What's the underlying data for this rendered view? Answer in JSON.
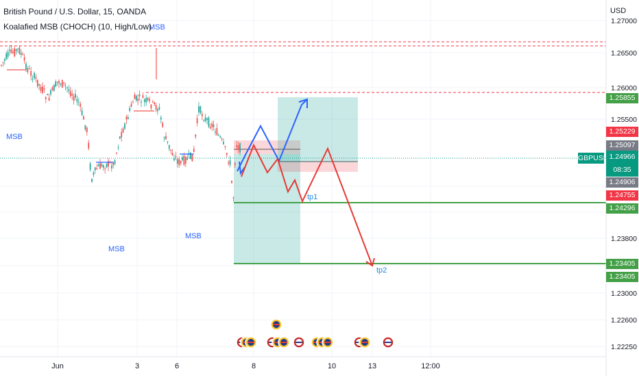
{
  "header": {
    "symbol": "British Pound / U.S. Dollar, 15, OANDA",
    "indicator": "Koalafied MSB (CHOCH)  (10, High/Low)"
  },
  "currency_label": "USD",
  "pair_badge": "GBPUSD",
  "current_price": {
    "price": "1.24966",
    "countdown": "08:35",
    "color": "#089981"
  },
  "price_axis": {
    "ticks": [
      "1.27000",
      "1.26500",
      "1.26000",
      "1.25500",
      "1.23800",
      "1.23000",
      "1.22600",
      "1.22250"
    ]
  },
  "price_tags": [
    {
      "label": "1.25855",
      "color": "#43a047"
    },
    {
      "label": "1.25229",
      "color": "#f23645"
    },
    {
      "label": "1.25097",
      "color": "#787b86"
    },
    {
      "label": "1.24906",
      "color": "#787b86"
    },
    {
      "label": "1.24755",
      "color": "#f23645"
    },
    {
      "label": "1.24296",
      "color": "#43a047"
    },
    {
      "label": "1.23405",
      "color": "#43a047"
    },
    {
      "label": "1.23405",
      "color": "#43a047"
    }
  ],
  "time_axis": {
    "ticks": [
      "Jun",
      "3",
      "6",
      "8",
      "10",
      "13",
      "12:00"
    ]
  },
  "annotations": {
    "msb_labels": [
      "MSB",
      "MSB",
      "MSB",
      "MSB"
    ],
    "tp1": "tp1",
    "tp2": "tp2"
  },
  "colors": {
    "up": "#26a69a",
    "down": "#ef5350",
    "bull_path": "#2962ff",
    "bear_path": "#e53935",
    "target_line": "#43a047",
    "resistance": "#f23645",
    "msb_text": "#2962ff"
  }
}
